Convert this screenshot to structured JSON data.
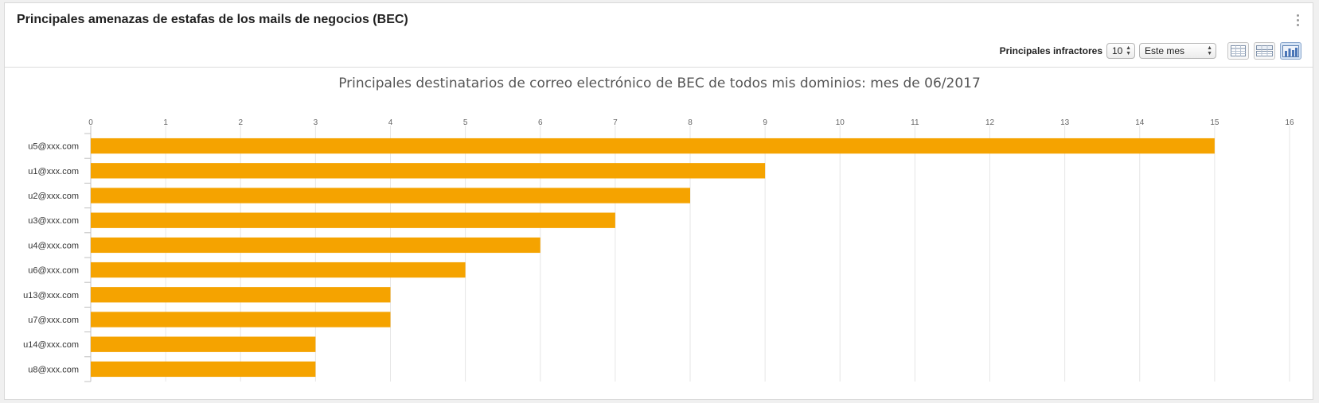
{
  "panel": {
    "title": "Principales amenazas de estafas de los mails de negocios (BEC)",
    "menu_icon": "vertical-dots-icon"
  },
  "controls": {
    "top_offenders_label": "Principales infractores",
    "count_value": "10",
    "period_value": "Este mes",
    "view_buttons": [
      {
        "icon": "table-view-icon",
        "active": false
      },
      {
        "icon": "table-chart-view-icon",
        "active": false
      },
      {
        "icon": "chart-view-icon",
        "active": true
      }
    ]
  },
  "chart_data": {
    "type": "bar",
    "orientation": "horizontal",
    "title": "Principales destinatarios de correo electrónico de BEC de todos mis dominios: mes de 06/2017",
    "categories": [
      "u5@xxx.com",
      "u1@xxx.com",
      "u2@xxx.com",
      "u3@xxx.com",
      "u4@xxx.com",
      "u6@xxx.com",
      "u13@xxx.com",
      "u7@xxx.com",
      "u14@xxx.com",
      "u8@xxx.com"
    ],
    "values": [
      15,
      9,
      8,
      7,
      6,
      5,
      4,
      4,
      3,
      3
    ],
    "xlim": [
      0,
      16
    ],
    "xticks": [
      "0",
      "1",
      "2",
      "3",
      "4",
      "5",
      "6",
      "7",
      "8",
      "9",
      "10",
      "11",
      "12",
      "13",
      "14",
      "15",
      "16"
    ],
    "grid": true,
    "bar_color": "#f5a300"
  }
}
